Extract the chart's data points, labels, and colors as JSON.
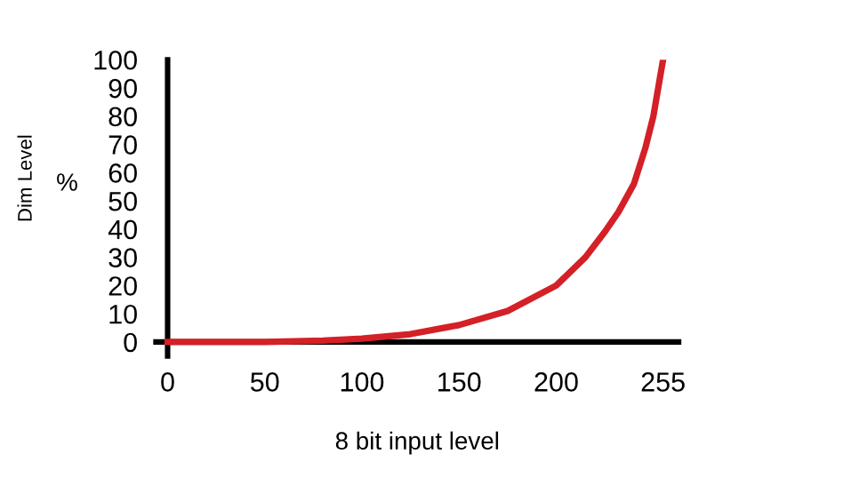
{
  "chart_data": {
    "type": "line",
    "xlabel": "8 bit input level",
    "ylabel": "Dim Level",
    "annotations": [
      "%"
    ],
    "x": [
      0,
      50,
      80,
      100,
      125,
      150,
      175,
      200,
      215,
      225,
      232,
      240,
      246,
      250,
      253,
      255
    ],
    "series": [
      {
        "color": "#d42027",
        "values": [
          0,
          0,
          0.5,
          1.2,
          2.8,
          6,
          11,
          20,
          30,
          39,
          46,
          56,
          69,
          80,
          92,
          100
        ]
      }
    ],
    "xlim": [
      -6,
      263
    ],
    "ylim": [
      -5,
      100
    ],
    "xticks": [
      0,
      50,
      100,
      150,
      200,
      255
    ],
    "yticks": [
      0,
      10,
      20,
      30,
      40,
      50,
      60,
      70,
      80,
      90,
      100
    ],
    "grid": false,
    "legend": false,
    "marker": "none",
    "line_style": "solid"
  }
}
